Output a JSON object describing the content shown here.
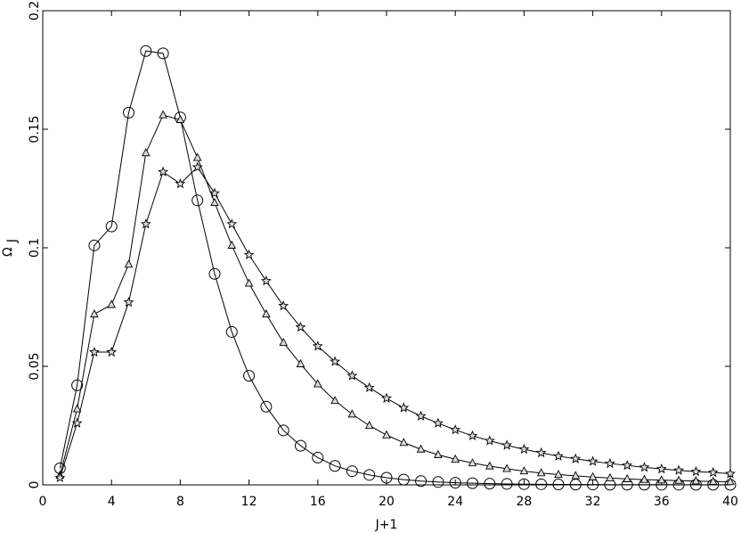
{
  "chart_data": {
    "type": "line",
    "title": "",
    "xlabel": "J+1",
    "ylabel": "Ω",
    "ylabel_subscript": "J",
    "xlim": [
      0,
      40
    ],
    "ylim": [
      0,
      0.2
    ],
    "xticks": [
      0,
      4,
      8,
      12,
      16,
      20,
      24,
      28,
      32,
      36,
      40
    ],
    "yticks": [
      0,
      0.05,
      0.1,
      0.15,
      0.2
    ],
    "xtick_labels": [
      "0",
      "4",
      "8",
      "12",
      "16",
      "20",
      "24",
      "28",
      "32",
      "36",
      "40"
    ],
    "ytick_labels": [
      "0",
      "0.05",
      "0.1",
      "0.15",
      "0.2"
    ],
    "grid": false,
    "legend": false,
    "series": [
      {
        "marker": "circle",
        "x": [
          1,
          2,
          3,
          4,
          5,
          6,
          7,
          8,
          9,
          10,
          11,
          12,
          13,
          14,
          15,
          16,
          17,
          18,
          19,
          20,
          21,
          22,
          23,
          24,
          25,
          26,
          27,
          28,
          29,
          30,
          31,
          32,
          33,
          34,
          35,
          36,
          37,
          38,
          39,
          40
        ],
        "values": [
          0.007,
          0.042,
          0.101,
          0.109,
          0.157,
          0.183,
          0.182,
          0.155,
          0.12,
          0.089,
          0.0645,
          0.046,
          0.033,
          0.023,
          0.0165,
          0.0115,
          0.008,
          0.0058,
          0.0042,
          0.003,
          0.0022,
          0.0016,
          0.0012,
          0.0009,
          0.0007,
          0.0005,
          0.0004,
          0.0003,
          0.00025,
          0.0002,
          0.00015,
          0.00012,
          0.0001,
          9e-05,
          8e-05,
          7e-05,
          6e-05,
          5e-05,
          5e-05,
          4e-05
        ]
      },
      {
        "marker": "triangle",
        "x": [
          1,
          2,
          3,
          4,
          5,
          6,
          7,
          8,
          9,
          10,
          11,
          12,
          13,
          14,
          15,
          16,
          17,
          18,
          19,
          20,
          21,
          22,
          23,
          24,
          25,
          26,
          27,
          28,
          29,
          30,
          31,
          32,
          33,
          34,
          35,
          36,
          37,
          38,
          39,
          40
        ],
        "values": [
          0.004,
          0.032,
          0.072,
          0.076,
          0.093,
          0.14,
          0.156,
          0.154,
          0.138,
          0.119,
          0.101,
          0.085,
          0.072,
          0.06,
          0.051,
          0.0425,
          0.0355,
          0.0298,
          0.025,
          0.021,
          0.0178,
          0.015,
          0.0127,
          0.0108,
          0.0092,
          0.0079,
          0.0068,
          0.0058,
          0.005,
          0.0043,
          0.0038,
          0.0033,
          0.0029,
          0.0025,
          0.0022,
          0.002,
          0.0018,
          0.0016,
          0.0014,
          0.0013
        ]
      },
      {
        "marker": "star",
        "x": [
          1,
          2,
          3,
          4,
          5,
          6,
          7,
          8,
          9,
          10,
          11,
          12,
          13,
          14,
          15,
          16,
          17,
          18,
          19,
          20,
          21,
          22,
          23,
          24,
          25,
          26,
          27,
          28,
          29,
          30,
          31,
          32,
          33,
          34,
          35,
          36,
          37,
          38,
          39,
          40
        ],
        "values": [
          0.003,
          0.026,
          0.056,
          0.056,
          0.077,
          0.11,
          0.132,
          0.127,
          0.134,
          0.123,
          0.11,
          0.097,
          0.086,
          0.0755,
          0.0665,
          0.0585,
          0.052,
          0.046,
          0.041,
          0.0365,
          0.0325,
          0.029,
          0.026,
          0.0232,
          0.0207,
          0.0186,
          0.0167,
          0.015,
          0.0135,
          0.0121,
          0.011,
          0.0099,
          0.009,
          0.0082,
          0.0074,
          0.0067,
          0.0061,
          0.0056,
          0.0052,
          0.0047
        ]
      }
    ]
  }
}
